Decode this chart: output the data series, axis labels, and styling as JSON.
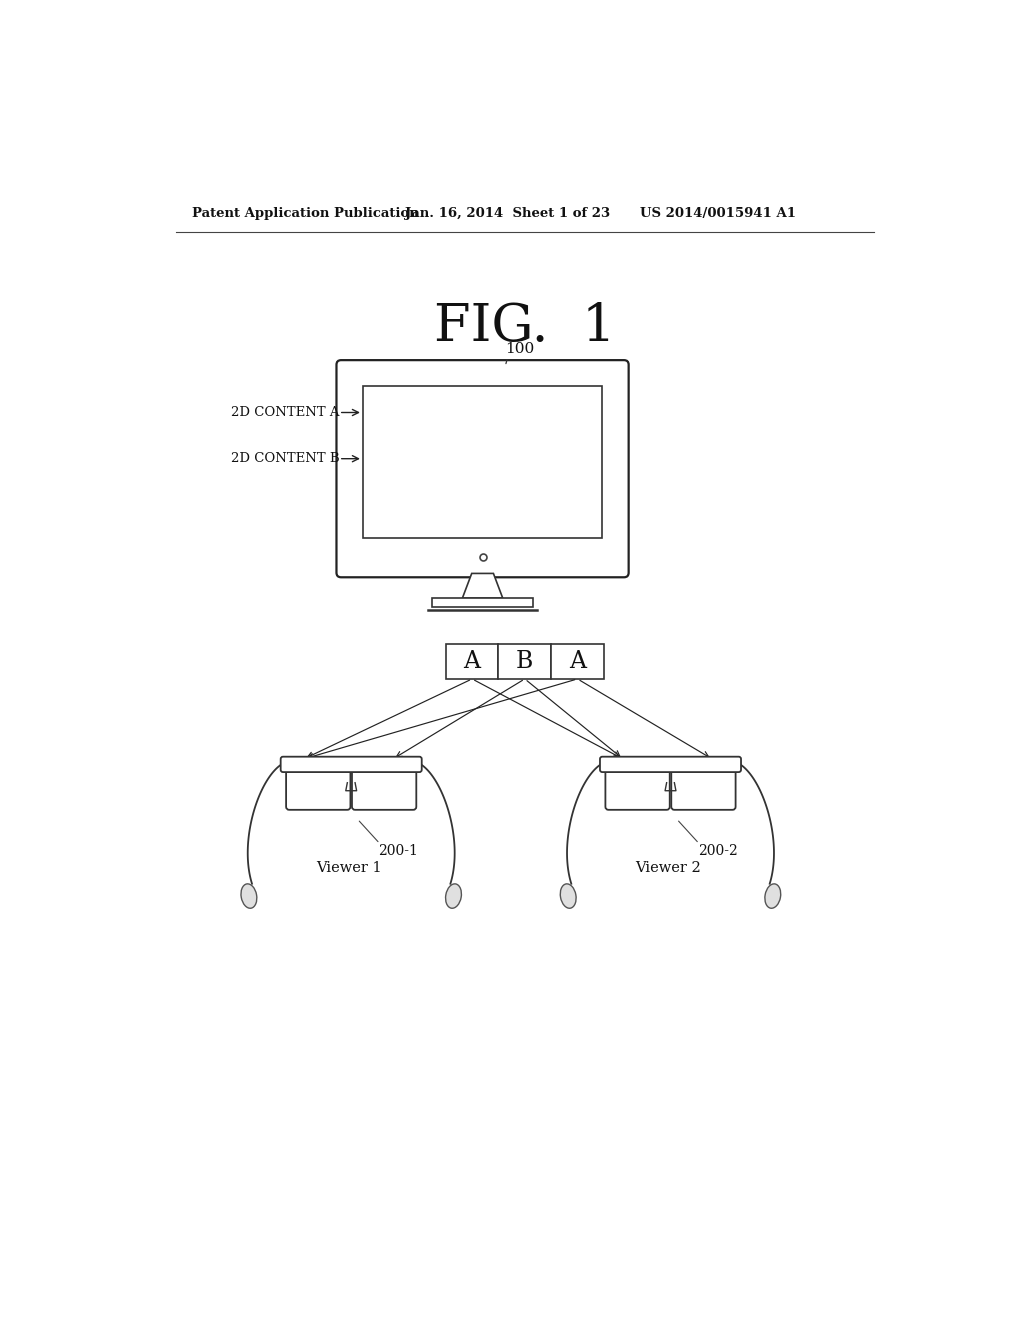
{
  "bg_color": "#ffffff",
  "header_left": "Patent Application Publication",
  "header_mid": "Jan. 16, 2014  Sheet 1 of 23",
  "header_right": "US 2014/0015941 A1",
  "fig_label": "FIG.  1",
  "tv_label": "100",
  "content_a_label": "2D CONTENT A",
  "content_b_label": "2D CONTENT B",
  "box_labels": [
    "A",
    "B",
    "A"
  ],
  "glasses1_label": "200-1",
  "glasses1_viewer": "Viewer 1",
  "glasses2_label": "200-2",
  "glasses2_viewer": "Viewer 2"
}
